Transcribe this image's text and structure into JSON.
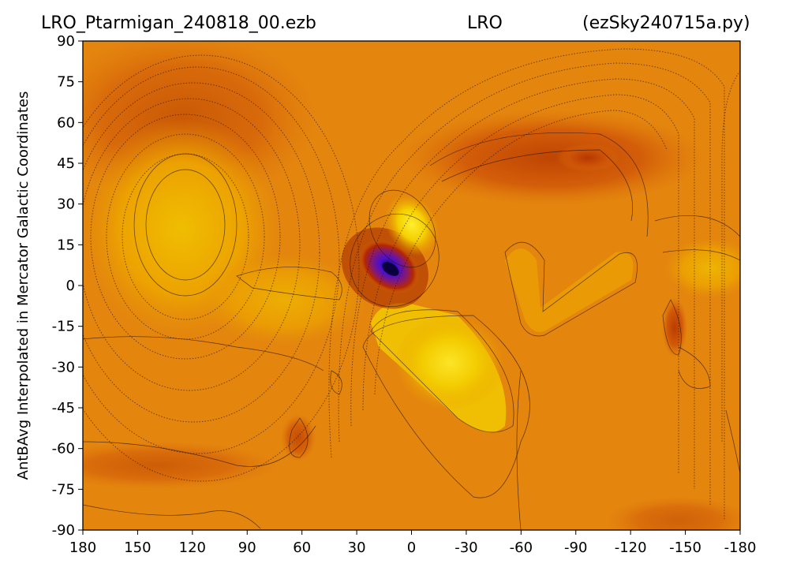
{
  "title": {
    "left": "LRO_Ptarmigan_240818_00.ezb",
    "center": "LRO",
    "right": "(ezSky240715a.py)"
  },
  "chart_data": {
    "type": "heatmap",
    "ylabel": "AntBAvg Interpolated in Mercator Galactic Coordinates",
    "xlabel": "",
    "x_ticks": [
      "180",
      "150",
      "120",
      "90",
      "60",
      "30",
      "0",
      "-30",
      "-60",
      "-90",
      "-120",
      "-150",
      "-180"
    ],
    "y_ticks": [
      "90",
      "75",
      "60",
      "45",
      "30",
      "15",
      "0",
      "-15",
      "-30",
      "-45",
      "-60",
      "-75",
      "-90"
    ],
    "xlim": [
      180,
      -180
    ],
    "ylim": [
      -90,
      90
    ],
    "colormap": "gnuplot-style (dark purple → red → orange → yellow)",
    "colors": {
      "background": "#e4850e",
      "low": "#3a06a8",
      "mid_low": "#9a1500",
      "mid": "#d9620a",
      "high": "#f6d400",
      "contour": "#2b1500"
    },
    "features": [
      {
        "name": "minimum",
        "x": 12,
        "y": 6,
        "level": "lowest"
      },
      {
        "name": "maximum",
        "x": -2,
        "y": 22,
        "level": "high"
      },
      {
        "name": "maximum",
        "x": 125,
        "y": 20,
        "level": "high"
      },
      {
        "name": "maximum",
        "x": -20,
        "y": -30,
        "level": "high"
      }
    ]
  }
}
